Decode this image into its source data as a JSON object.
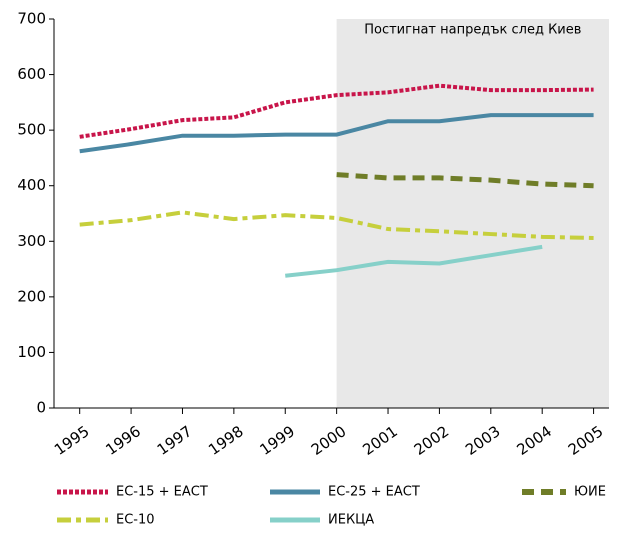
{
  "chart_data": {
    "type": "line",
    "x": [
      1995,
      1996,
      1997,
      1998,
      1999,
      2000,
      2001,
      2002,
      2003,
      2004,
      2005
    ],
    "xlim": [
      1994.5,
      2005.3
    ],
    "xticks": [
      1995,
      1996,
      1997,
      1998,
      1999,
      2000,
      2001,
      2002,
      2003,
      2004,
      2005
    ],
    "ylim": [
      0,
      700
    ],
    "yticks": [
      0,
      100,
      200,
      300,
      400,
      500,
      600,
      700
    ],
    "annotation": {
      "text": "Постигнат напредък след Киев",
      "x_start": 2000,
      "color": "#e8e8e8"
    },
    "series": [
      {
        "name": "ЕС-15 + ЕАСТ",
        "color": "#c8154a",
        "values": [
          488,
          502,
          518,
          523,
          550,
          563,
          568,
          580,
          572,
          572,
          573
        ]
      },
      {
        "name": "ЕС-25 + ЕАСТ",
        "color": "#4a87a3",
        "values": [
          462,
          475,
          490,
          490,
          492,
          492,
          516,
          516,
          527,
          527,
          527
        ]
      },
      {
        "name": "ЮИЕ",
        "color": "#6f7d28",
        "values": [
          null,
          null,
          null,
          null,
          null,
          420,
          414,
          414,
          410,
          403,
          400
        ]
      },
      {
        "name": "ЕС-10",
        "color": "#c6cf3c",
        "values": [
          330,
          338,
          352,
          340,
          347,
          342,
          322,
          318,
          313,
          308,
          306
        ]
      },
      {
        "name": "ИЕКЦА",
        "color": "#86d0c9",
        "values": [
          null,
          null,
          null,
          null,
          238,
          248,
          263,
          260,
          275,
          290,
          null
        ]
      }
    ]
  }
}
